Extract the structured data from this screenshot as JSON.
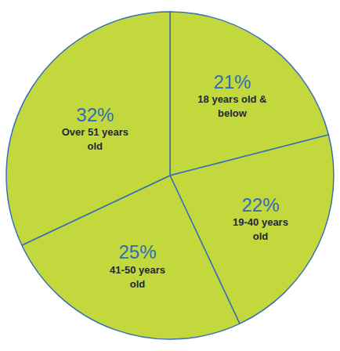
{
  "chart_data": {
    "type": "pie",
    "categories": [
      "18 years old & below",
      "19-40 years old",
      "41-50 years old",
      "Over 51 years old"
    ],
    "values": [
      21,
      22,
      25,
      32
    ],
    "value_labels": [
      "21%",
      "22%",
      "25%",
      "32%"
    ],
    "color": "#c3d83c",
    "data_labels": true
  }
}
